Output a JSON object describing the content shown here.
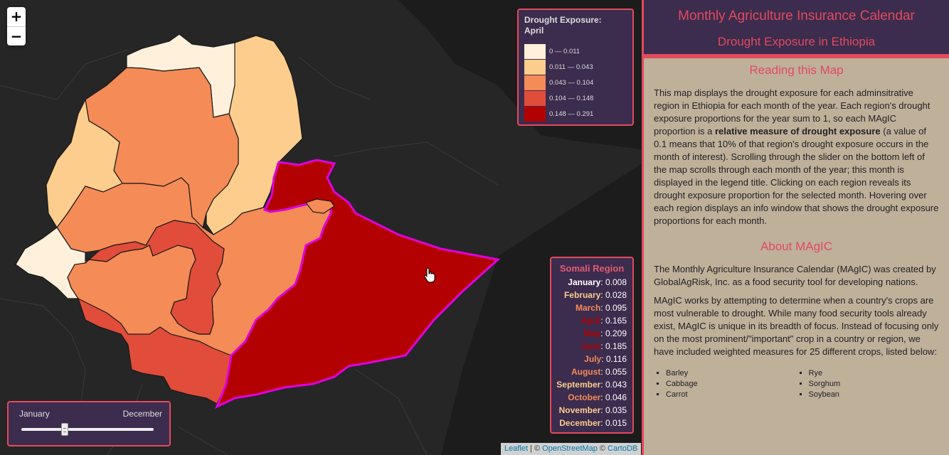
{
  "zoom": {
    "in_label": "+",
    "out_label": "−"
  },
  "legend": {
    "title_line1": "Drought Exposure:",
    "title_line2": "April",
    "items": [
      {
        "label": "0 — 0.011",
        "color": "#fff0dc"
      },
      {
        "label": "0.011 — 0.043",
        "color": "#fdcd8d"
      },
      {
        "label": "0.043 — 0.104",
        "color": "#f58b57"
      },
      {
        "label": "0.104 — 0.148",
        "color": "#e14d3a"
      },
      {
        "label": "0.148 — 0.291",
        "color": "#b30000"
      }
    ]
  },
  "info": {
    "title": "Somali Region",
    "months": [
      {
        "name": "January",
        "value": "0.008",
        "color": "#ffffff"
      },
      {
        "name": "February",
        "value": "0.028",
        "color": "#fdcd8d"
      },
      {
        "name": "March",
        "value": "0.095",
        "color": "#f58b57"
      },
      {
        "name": "April",
        "value": "0.165",
        "color": "#b30000"
      },
      {
        "name": "May",
        "value": "0.209",
        "color": "#b30000"
      },
      {
        "name": "June",
        "value": "0.185",
        "color": "#b30000"
      },
      {
        "name": "July",
        "value": "0.116",
        "color": "#f58b57"
      },
      {
        "name": "August",
        "value": "0.055",
        "color": "#f58b57"
      },
      {
        "name": "September",
        "value": "0.043",
        "color": "#fdcd8d"
      },
      {
        "name": "October",
        "value": "0.046",
        "color": "#f58b57"
      },
      {
        "name": "November",
        "value": "0.035",
        "color": "#fdcd8d"
      },
      {
        "name": "December",
        "value": "0.015",
        "color": "#fdcd8d"
      }
    ]
  },
  "slider": {
    "min_label": "January",
    "max_label": "December",
    "value": 4,
    "min": 1,
    "max": 12
  },
  "attribution": {
    "leaflet": "Leaflet",
    "sep1": " | © ",
    "osm": "OpenStreetMap",
    "sep2": " © ",
    "carto": "CartoDB"
  },
  "panel": {
    "title": "Monthly Agriculture Insurance Calendar",
    "subtitle": "Drought Exposure in Ethiopia",
    "reading_heading": "Reading this Map",
    "reading_text_1": "This map displays the drought exposure for each adminsitrative region in Ethiopia for each month of the year. Each region's drought exposure proportions for the year sum to 1, so each MAgIC proportion is a ",
    "reading_bold": "relative measure of drought exposure",
    "reading_text_2": " (a value of 0.1 means that 10% of that region's drought exposure occurs in the month of interest). Scrolling through the slider on the bottom left of the map scrolls through each month of the year; this month is displayed in the legend title. Clicking on each region reveals its drought exposure proportion for the selected month. Hovering over each region displays an info window that shows the drought exposure proportions for each month.",
    "about_heading": "About MAgIC",
    "about_p1": "The Monthly Agriculture Insurance Calendar (MAgIC) was created by GlobalAgRisk, Inc. as a food security tool for developing nations.",
    "about_p2": "MAgIC works by attempting to determine when a country's crops are most vulnerable to drought. While many food security tools already exist, MAgIC is unique in its breadth of focus. Instead of focusing only on the most prominent/\"important\" crop in a country or region, we have included weighted measures for 25 different crops, listed below:",
    "crops_left": [
      "Barley",
      "Cabbage",
      "Carrot"
    ],
    "crops_right": [
      "Rye",
      "Sorghum",
      "Soybean"
    ]
  }
}
